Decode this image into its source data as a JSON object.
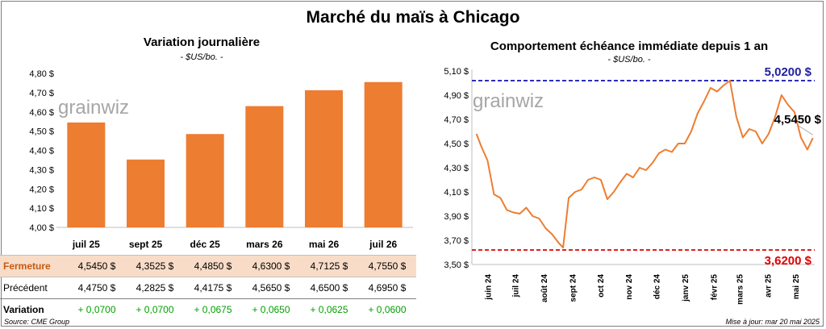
{
  "title": "Marché du maïs à Chicago",
  "left": {
    "title": "Variation journalière",
    "unit": "- $US/bo. -",
    "watermark": "grainwiz"
  },
  "right": {
    "title": "Comportement échéance immédiate depuis 1 an",
    "unit": "- $US/bo. -",
    "watermark": "grainwiz"
  },
  "table": {
    "rows": [
      {
        "label": "Fermeture",
        "values": [
          "4,5450  $",
          "4,3525  $",
          "4,4850  $",
          "4,6300  $",
          "4,7125  $",
          "4,7550  $"
        ]
      },
      {
        "label": "Précédent",
        "values": [
          "4,4750  $",
          "4,2825  $",
          "4,4175  $",
          "4,5650  $",
          "4,6500  $",
          "4,6950  $"
        ]
      },
      {
        "label": "Variation",
        "values": [
          "+ 0,0700",
          "+ 0,0700",
          "+ 0,0675",
          "+ 0,0650",
          "+ 0,0625",
          "+ 0,0600"
        ]
      }
    ]
  },
  "footer": {
    "source": "Source: CME Group",
    "updated": "Mise à jour: mar 20 mai 2025"
  },
  "colors": {
    "bar": "#ed7d31",
    "line": "#ed7d31",
    "high_line": "#2e2eb8",
    "low_line": "#e02020",
    "high_label": "#1f1fa0",
    "low_label": "#e00000",
    "variation_green": "#00a000",
    "fermeture_bg": "#f8dcc8"
  },
  "chart_data": [
    {
      "type": "bar",
      "title": "Variation journalière",
      "categories": [
        "juil 25",
        "sept 25",
        "déc 25",
        "mars 26",
        "mai 26",
        "juil 26"
      ],
      "values": [
        4.545,
        4.3525,
        4.485,
        4.63,
        4.7125,
        4.755
      ],
      "ylim": [
        4.0,
        4.8
      ],
      "yticks": [
        "4,00 $",
        "4,10 $",
        "4,20 $",
        "4,30 $",
        "4,40 $",
        "4,50 $",
        "4,60 $",
        "4,70 $",
        "4,80 $"
      ],
      "grid": false
    },
    {
      "type": "line",
      "title": "Comportement échéance immédiate depuis 1 an",
      "ylim": [
        3.5,
        5.1
      ],
      "yticks": [
        "3,50 $",
        "3,70 $",
        "3,90 $",
        "4,10 $",
        "4,30 $",
        "4,50 $",
        "4,70 $",
        "4,90 $",
        "5,10 $"
      ],
      "xticks": [
        "juin 24",
        "juil 24",
        "août 24",
        "sept 24",
        "oct 24",
        "nov 24",
        "déc 24",
        "janv 25",
        "févr 25",
        "mars 25",
        "avr 25",
        "mai 25"
      ],
      "x": [
        "2024-05-20",
        "2024-05-25",
        "2024-06-01",
        "2024-06-08",
        "2024-06-15",
        "2024-06-22",
        "2024-06-29",
        "2024-07-06",
        "2024-07-13",
        "2024-07-20",
        "2024-07-27",
        "2024-08-03",
        "2024-08-10",
        "2024-08-17",
        "2024-08-22",
        "2024-08-28",
        "2024-09-04",
        "2024-09-11",
        "2024-09-18",
        "2024-09-25",
        "2024-10-02",
        "2024-10-09",
        "2024-10-16",
        "2024-10-23",
        "2024-10-30",
        "2024-11-06",
        "2024-11-13",
        "2024-11-20",
        "2024-11-27",
        "2024-12-04",
        "2024-12-11",
        "2024-12-18",
        "2024-12-25",
        "2025-01-01",
        "2025-01-08",
        "2025-01-15",
        "2025-01-22",
        "2025-01-29",
        "2025-02-05",
        "2025-02-12",
        "2025-02-19",
        "2025-02-26",
        "2025-03-05",
        "2025-03-12",
        "2025-03-19",
        "2025-03-26",
        "2025-04-02",
        "2025-04-09",
        "2025-04-16",
        "2025-04-23",
        "2025-04-30",
        "2025-05-07",
        "2025-05-14",
        "2025-05-20"
      ],
      "series": [
        {
          "values": [
            4.58,
            4.48,
            4.36,
            4.08,
            4.05,
            3.95,
            3.93,
            3.92,
            3.97,
            3.9,
            3.88,
            3.8,
            3.75,
            3.68,
            3.64,
            4.05,
            4.1,
            4.12,
            4.2,
            4.22,
            4.2,
            4.04,
            4.1,
            4.18,
            4.25,
            4.22,
            4.3,
            4.28,
            4.34,
            4.42,
            4.45,
            4.43,
            4.5,
            4.5,
            4.6,
            4.75,
            4.85,
            4.96,
            4.93,
            4.98,
            5.02,
            4.72,
            4.55,
            4.62,
            4.6,
            4.5,
            4.58,
            4.72,
            4.9,
            4.82,
            4.76,
            4.55,
            4.45,
            4.545
          ]
        }
      ],
      "annotations": [
        "5,0200 $",
        "4,5450 $",
        "3,6200 $"
      ],
      "high": 5.02,
      "low": 3.62,
      "last": 4.545,
      "grid": false
    }
  ]
}
